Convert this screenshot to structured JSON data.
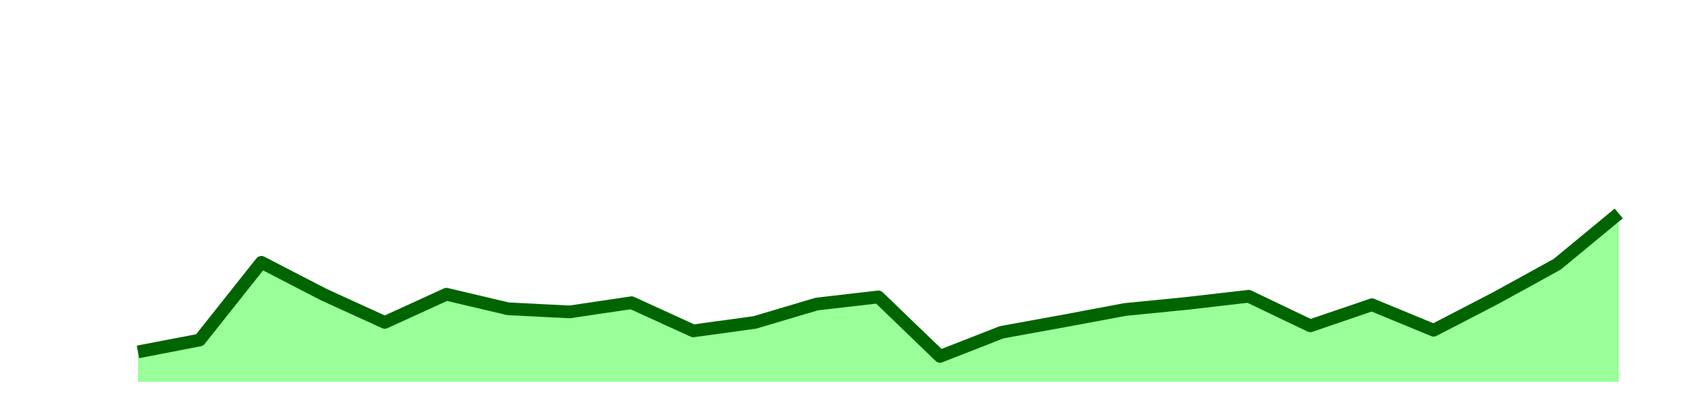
{
  "chart_data": {
    "type": "area",
    "x": [
      0,
      1,
      2,
      3,
      4,
      5,
      6,
      7,
      8,
      9,
      10,
      11,
      12,
      13,
      14,
      15,
      16,
      17,
      18,
      19,
      20,
      21,
      22,
      23,
      24
    ],
    "values": [
      8.8,
      12.3,
      35.2,
      25.8,
      17.5,
      25.8,
      21.5,
      20.6,
      23.3,
      15.0,
      17.5,
      22.9,
      25.0,
      7.5,
      14.6,
      17.9,
      21.3,
      23.1,
      25.2,
      16.5,
      22.7,
      15.2,
      24.6,
      34.6,
      49.6
    ],
    "xlim": [
      0,
      24
    ],
    "ylim": [
      0,
      100
    ],
    "line_color": "#006400",
    "fill_color": "#99ff99"
  }
}
